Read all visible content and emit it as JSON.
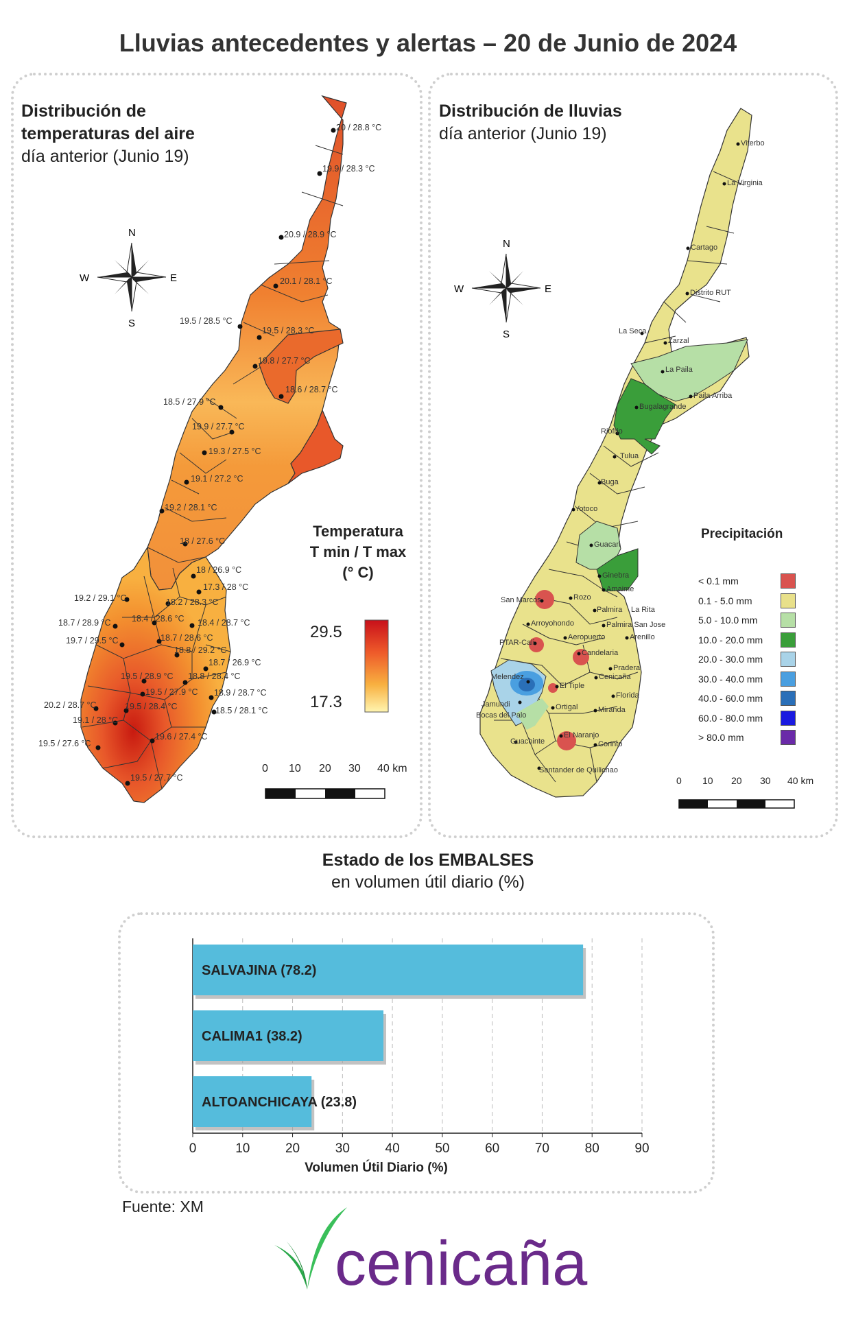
{
  "title": "Lluvias antecedentes y alertas – 20 de Junio de 2024",
  "temp_panel": {
    "title_line1": "Distribución de",
    "title_line2": "temperaturas del aire",
    "subtitle": "día anterior (Junio 19)",
    "legend_title_1": "Temperatura",
    "legend_title_2": "T min / T max",
    "legend_title_3": "(° C)",
    "legend_max": "29.5",
    "legend_min": "17.3",
    "scale_labels": [
      "0",
      "10",
      "20",
      "30",
      "40 km"
    ],
    "compass": {
      "n": "N",
      "s": "S",
      "e": "E",
      "w": "W"
    },
    "stations": [
      "20 / 28.8 °C",
      "19.9 / 28.3 °C",
      "20.9 / 28.9 °C",
      "20.1 / 28.1 °C",
      "19.5 / 28.5 °C",
      "19.5 / 28.3 °C",
      "19.8 / 27.7 °C",
      "18.6 / 28.7 °C",
      "18.5 / 27.9 °C",
      "19.9 / 27.7 °C",
      "19.3 / 27.5 °C",
      "19.1 / 27.2 °C",
      "19.2 / 28.1 °C",
      "18 / 27.6 °C",
      "18 / 26.9 °C",
      "17.3 / 28 °C",
      "19.2 / 29.1 °C",
      "18.2 / 28.3 °C",
      "18.7 / 28.9 °C",
      "18.4 / 28.6 °C",
      "18.4 / 28.7 °C",
      "19.7 / 29.5 °C",
      "18.7 / 28.6 °C",
      "18.8 / 29.2 °C",
      "18.7 / 26.9 °C",
      "19.5 / 28.9 °C",
      "18.8 / 28.4 °C",
      "19.5 / 27.9 °C",
      "18.9 / 28.7 °C",
      "20.2 / 28.7 °C",
      "19.5 / 28.4 °C",
      "18.5 / 28.1 °C",
      "19.1 / 28 °C",
      "19.6 / 27.4 °C",
      "19.5 / 27.6 °C",
      "19.5 / 27.7 °C"
    ]
  },
  "rain_panel": {
    "title": "Distribución de lluvias",
    "subtitle": "día anterior (Junio 19)",
    "legend_title": "Precipitación",
    "legend": [
      {
        "label": "< 0.1 mm",
        "color": "#d9534f"
      },
      {
        "label": "0.1 - 5.0 mm",
        "color": "#e8e08a"
      },
      {
        "label": "5.0 - 10.0 mm",
        "color": "#b6dfa6"
      },
      {
        "label": "10.0 - 20.0 mm",
        "color": "#3a9e3a"
      },
      {
        "label": "20.0 - 30.0 mm",
        "color": "#a9d3e8"
      },
      {
        "label": "30.0 - 40.0 mm",
        "color": "#4a9fe0"
      },
      {
        "label": "40.0 - 60.0 mm",
        "color": "#2a6fb8"
      },
      {
        "label": "60.0 - 80.0 mm",
        "color": "#1a1ae0"
      },
      {
        "label": "> 80.0 mm",
        "color": "#6a2aa8"
      }
    ],
    "scale_labels": [
      "0",
      "10",
      "20",
      "30",
      "40 km"
    ],
    "compass": {
      "n": "N",
      "s": "S",
      "e": "E",
      "w": "W"
    },
    "places": [
      "Viterbo",
      "La Virginia",
      "Cartago",
      "Distrito RUT",
      "La Seca",
      "Zarzal",
      "La Paila",
      "Paila Arriba",
      "Bugalagrande",
      "Riofrio",
      "Tulua",
      "Buga",
      "Yotoco",
      "Guacari",
      "Ginebra",
      "San Marcos",
      "Rozo",
      "Amaime",
      "Palmira",
      "La Rita",
      "Arroyohondo",
      "Palmira San Jose",
      "Aeropuerto",
      "Arenillo",
      "PTAR-Cali",
      "Candelaria",
      "Pradera",
      "Melendez",
      "Cenicaña",
      "El Tiple",
      "Florida",
      "Jamundi",
      "Bocas del Palo",
      "Ortigal",
      "Miranda",
      "El Naranjo",
      "Guachinte",
      "Corinto",
      "Santander de Quilichao"
    ]
  },
  "reservoirs": {
    "title": "Estado de los EMBALSES",
    "subtitle": "en volumen útil diario (%)",
    "source": "Fuente: XM"
  },
  "chart_data": {
    "type": "bar",
    "orientation": "horizontal",
    "categories": [
      "SALVAJINA",
      "CALIMA1",
      "ALTOANCHICAYA"
    ],
    "values": [
      78.2,
      38.2,
      23.8
    ],
    "bar_labels": [
      "SALVAJINA (78.2)",
      "CALIMA1 (38.2)",
      "ALTOANCHICAYA (23.8)"
    ],
    "xlabel": "Volumen Útil Diario (%)",
    "xlim": [
      0,
      90
    ],
    "xticks": [
      0,
      10,
      20,
      30,
      40,
      50,
      60,
      70,
      80,
      90
    ],
    "grid": true,
    "bar_color": "#55bcdc"
  },
  "logo": {
    "text": "cenicaña",
    "leaf_color": "#2aa84a",
    "text_color": "#6a2a8a"
  }
}
